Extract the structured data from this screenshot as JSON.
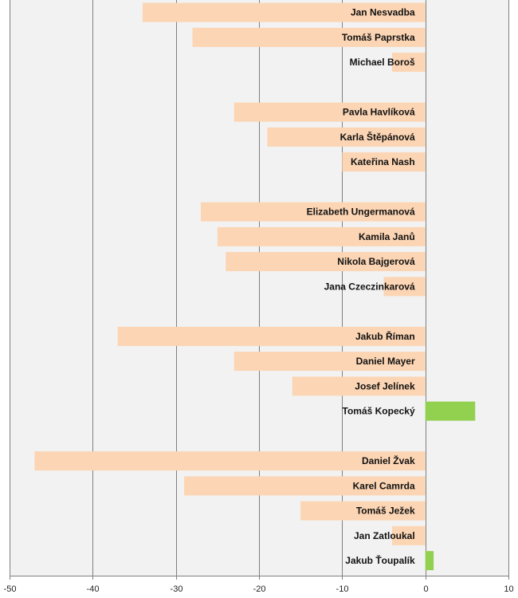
{
  "chart_data": {
    "type": "bar",
    "orientation": "horizontal",
    "title": "",
    "xlabel": "",
    "ylabel": "",
    "xlim": [
      -50,
      10
    ],
    "xticks": [
      -50,
      -40,
      -30,
      -20,
      -10,
      0,
      10
    ],
    "grid": true,
    "legend": "none",
    "colors": {
      "negative": "#fcd5b4",
      "positive": "#92d050",
      "plot_background": "#f2f2f2",
      "gridline": "#7f7f7f"
    },
    "groups": [
      [
        {
          "label": "Jan Nesvadba",
          "value": -34
        },
        {
          "label": "Tomáš Paprstka",
          "value": -28
        },
        {
          "label": "Michael Boroš",
          "value": -4
        }
      ],
      [
        {
          "label": "Pavla Havlíková",
          "value": -23
        },
        {
          "label": "Karla Štěpánová",
          "value": -19
        },
        {
          "label": "Kateřina Nash",
          "value": -10
        }
      ],
      [
        {
          "label": "Elizabeth Ungermanová",
          "value": -27
        },
        {
          "label": "Kamila Janů",
          "value": -25
        },
        {
          "label": "Nikola Bajgerová",
          "value": -24
        },
        {
          "label": "Jana Czeczinkarová",
          "value": -5
        }
      ],
      [
        {
          "label": "Jakub Říman",
          "value": -37
        },
        {
          "label": "Daniel Mayer",
          "value": -23
        },
        {
          "label": "Josef Jelínek",
          "value": -16
        },
        {
          "label": "Tomáš Kopecký",
          "value": 6
        }
      ],
      [
        {
          "label": "Daniel Žvak",
          "value": -47
        },
        {
          "label": "Karel Camrda",
          "value": -29
        },
        {
          "label": "Tomáš Ježek",
          "value": -15
        },
        {
          "label": "Jan Zatloukal",
          "value": -4
        },
        {
          "label": "Jakub Ťoupalík",
          "value": 1
        }
      ]
    ]
  }
}
